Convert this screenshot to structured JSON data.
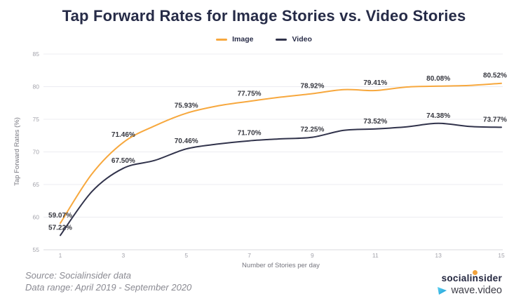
{
  "chart_data": {
    "type": "line",
    "title": "Tap Forward Rates for Image Stories vs. Video Stories",
    "xlabel": "Number of Stories per day",
    "ylabel": "Tap Forward Rates (%)",
    "x": [
      1,
      2,
      3,
      4,
      5,
      6,
      7,
      8,
      9,
      10,
      11,
      12,
      13,
      14,
      15
    ],
    "xticks": [
      1,
      3,
      5,
      7,
      9,
      11,
      13,
      15
    ],
    "yticks": [
      55,
      60,
      65,
      70,
      75,
      80,
      85
    ],
    "ylim": [
      55,
      85
    ],
    "grid": "horizontal",
    "legend_position": "top-center",
    "series": [
      {
        "name": "Image",
        "color": "#F7A83E",
        "values": [
          59.07,
          66.6,
          71.46,
          74.0,
          75.93,
          77.05,
          77.75,
          78.4,
          78.92,
          79.55,
          79.41,
          79.95,
          80.08,
          80.18,
          80.52
        ],
        "labeled_points": [
          {
            "x": 1,
            "y": 59.07,
            "label": "59.07%"
          },
          {
            "x": 3,
            "y": 71.46,
            "label": "71.46%"
          },
          {
            "x": 5,
            "y": 75.93,
            "label": "75.93%"
          },
          {
            "x": 7,
            "y": 77.75,
            "label": "77.75%"
          },
          {
            "x": 9,
            "y": 78.92,
            "label": "78.92%"
          },
          {
            "x": 11,
            "y": 79.41,
            "label": "79.41%"
          },
          {
            "x": 13,
            "y": 80.08,
            "label": "80.08%"
          },
          {
            "x": 15,
            "y": 80.52,
            "label": "80.52%"
          }
        ]
      },
      {
        "name": "Video",
        "color": "#31334B",
        "values": [
          57.22,
          63.9,
          67.5,
          68.7,
          70.46,
          71.2,
          71.7,
          72.0,
          72.25,
          73.3,
          73.52,
          73.85,
          74.38,
          73.9,
          73.77
        ],
        "labeled_points": [
          {
            "x": 1,
            "y": 57.22,
            "label": "57.22%"
          },
          {
            "x": 3,
            "y": 67.5,
            "label": "67.50%"
          },
          {
            "x": 5,
            "y": 70.46,
            "label": "70.46%"
          },
          {
            "x": 7,
            "y": 71.7,
            "label": "71.70%"
          },
          {
            "x": 9,
            "y": 72.25,
            "label": "72.25%"
          },
          {
            "x": 11,
            "y": 73.52,
            "label": "73.52%"
          },
          {
            "x": 13,
            "y": 74.38,
            "label": "74.38%"
          },
          {
            "x": 15,
            "y": 73.77,
            "label": "73.77%"
          }
        ]
      }
    ]
  },
  "footer": {
    "source": "Source: Socialinsider data",
    "date_range": "Data range: April 2019 - September 2020"
  },
  "logos": {
    "socialinsider": "socialinsider",
    "wave_video": "wave.video"
  },
  "colors": {
    "title": "#262B47",
    "image_line": "#F7A83E",
    "video_line": "#31334B",
    "gridline": "#ECECF1",
    "tick_text": "#A3A3AB",
    "footer_text": "#8A8A92",
    "logo_dot": "#F2A23B"
  }
}
